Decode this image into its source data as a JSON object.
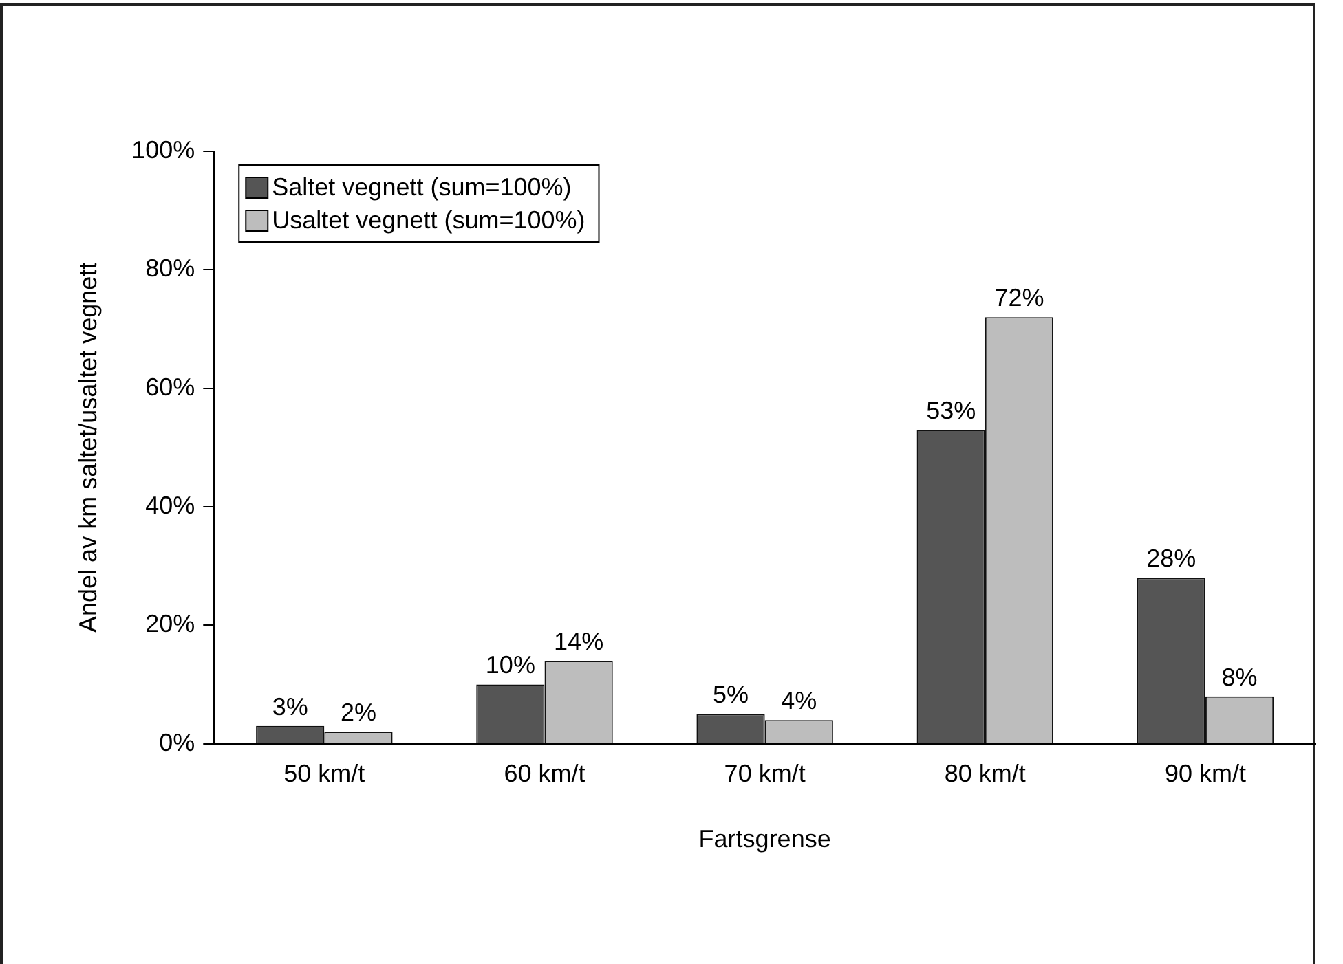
{
  "chart_data": {
    "type": "bar",
    "xlabel": "Fartsgrense",
    "ylabel": "Andel av km saltet/usaltet vegnett",
    "categories": [
      "50 km/t",
      "60 km/t",
      "70 km/t",
      "80 km/t",
      "90 km/t"
    ],
    "series": [
      {
        "name": "Saltet vegnett (sum=100%)",
        "color": "#555555",
        "values": [
          3,
          10,
          5,
          53,
          28
        ],
        "value_labels": [
          "3%",
          "10%",
          "5%",
          "53%",
          "28%"
        ]
      },
      {
        "name": "Usaltet vegnett (sum=100%)",
        "color": "#bdbdbd",
        "values": [
          2,
          14,
          4,
          72,
          8
        ],
        "value_labels": [
          "2%",
          "14%",
          "4%",
          "72%",
          "8%"
        ]
      }
    ],
    "ylim": [
      0,
      100
    ],
    "yticks": [
      {
        "value": 0,
        "label": "0%"
      },
      {
        "value": 20,
        "label": "20%"
      },
      {
        "value": 40,
        "label": "40%"
      },
      {
        "value": 60,
        "label": "60%"
      },
      {
        "value": 80,
        "label": "80%"
      },
      {
        "value": 100,
        "label": "100%"
      }
    ],
    "grid": false,
    "legend": "top left"
  }
}
